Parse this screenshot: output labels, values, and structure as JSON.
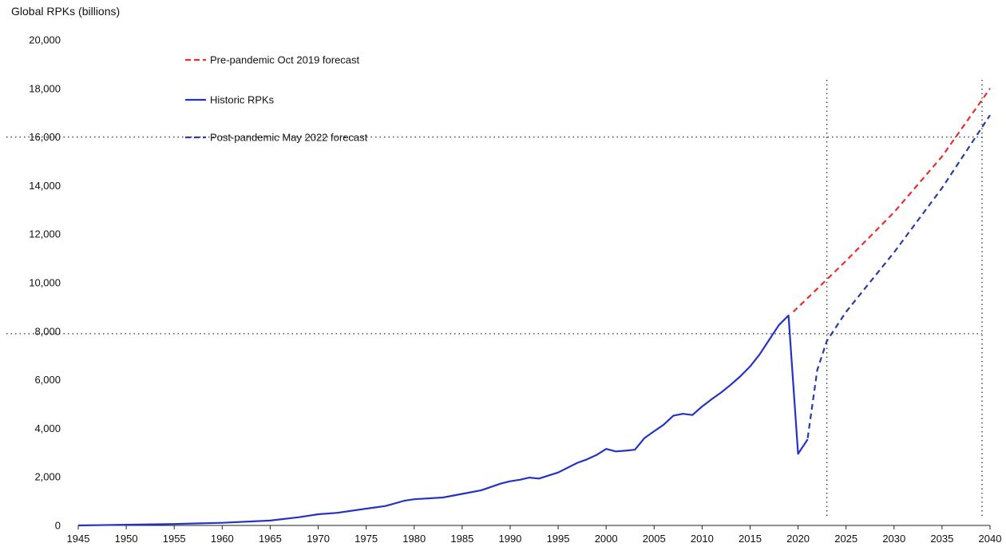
{
  "chart_data": {
    "type": "line",
    "title": "",
    "xlabel": "",
    "ylabel": "Global RPKs (billions)",
    "xlim": [
      1945,
      2040
    ],
    "ylim": [
      0,
      20000
    ],
    "x_ticks": [
      "1945",
      "1950",
      "1955",
      "1960",
      "1965",
      "1970",
      "1975",
      "1980",
      "1985",
      "1990",
      "1995",
      "2000",
      "2005",
      "2010",
      "2015",
      "2020",
      "2025",
      "2030",
      "2035",
      "2040"
    ],
    "y_ticks": [
      "0",
      "2,000",
      "4,000",
      "6,000",
      "8,000",
      "10,000",
      "12,000",
      "14,000",
      "16,000",
      "18,000",
      "20,000"
    ],
    "grid": false,
    "legend_position": "top-left",
    "series": [
      {
        "name": "Pre-pandemic Oct 2019 forecast",
        "color": "#e8302a",
        "style": "dashed",
        "points": [
          [
            2019.5,
            8800
          ],
          [
            2022,
            9750
          ],
          [
            2025,
            10900
          ],
          [
            2030,
            12900
          ],
          [
            2035,
            15200
          ],
          [
            2040,
            18000
          ]
        ]
      },
      {
        "name": "Historic RPKs",
        "color": "#2433c4",
        "style": "solid",
        "points": [
          [
            1945,
            0
          ],
          [
            1950,
            28
          ],
          [
            1955,
            60
          ],
          [
            1960,
            110
          ],
          [
            1965,
            200
          ],
          [
            1968,
            340
          ],
          [
            1970,
            460
          ],
          [
            1972,
            520
          ],
          [
            1975,
            690
          ],
          [
            1977,
            800
          ],
          [
            1979,
            1020
          ],
          [
            1980,
            1080
          ],
          [
            1983,
            1150
          ],
          [
            1985,
            1300
          ],
          [
            1987,
            1450
          ],
          [
            1989,
            1720
          ],
          [
            1990,
            1820
          ],
          [
            1991,
            1880
          ],
          [
            1992,
            1970
          ],
          [
            1993,
            1930
          ],
          [
            1995,
            2180
          ],
          [
            1997,
            2580
          ],
          [
            1998,
            2720
          ],
          [
            1999,
            2900
          ],
          [
            2000,
            3150
          ],
          [
            2001,
            3050
          ],
          [
            2002,
            3080
          ],
          [
            2003,
            3120
          ],
          [
            2004,
            3600
          ],
          [
            2005,
            3880
          ],
          [
            2006,
            4150
          ],
          [
            2007,
            4520
          ],
          [
            2008,
            4600
          ],
          [
            2009,
            4550
          ],
          [
            2010,
            4900
          ],
          [
            2011,
            5200
          ],
          [
            2012,
            5480
          ],
          [
            2013,
            5800
          ],
          [
            2014,
            6150
          ],
          [
            2015,
            6550
          ],
          [
            2016,
            7050
          ],
          [
            2017,
            7650
          ],
          [
            2018,
            8250
          ],
          [
            2019,
            8650
          ],
          [
            2020,
            2950
          ],
          [
            2021,
            3550
          ]
        ]
      },
      {
        "name": "Post-pandemic May 2022 forecast",
        "color": "#2a3aa8",
        "style": "dashed",
        "points": [
          [
            2021,
            3600
          ],
          [
            2022,
            6400
          ],
          [
            2023,
            7600
          ],
          [
            2025,
            8800
          ],
          [
            2030,
            11250
          ],
          [
            2035,
            13900
          ],
          [
            2040,
            16900
          ]
        ]
      }
    ],
    "reference_lines": {
      "horizontal": [
        16000,
        7900
      ],
      "vertical": [
        2023,
        2040
      ]
    }
  }
}
